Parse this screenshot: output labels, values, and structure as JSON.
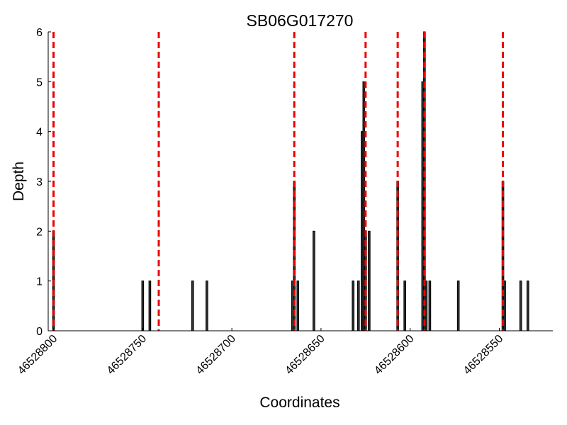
{
  "chart_data": {
    "type": "bar",
    "title": "SB06G017270",
    "xlabel": "Coordinates",
    "ylabel": "Depth",
    "x_axis_reversed": true,
    "xlim": [
      46528803,
      46528520
    ],
    "ylim": [
      0,
      6
    ],
    "x_ticks": [
      46528800,
      46528750,
      46528700,
      46528650,
      46528600,
      46528550
    ],
    "x_tick_labels": [
      "46528800",
      "46528750",
      "46528700",
      "46528650",
      "46528600",
      "46528550"
    ],
    "y_ticks": [
      0,
      1,
      2,
      3,
      4,
      5,
      6
    ],
    "y_tick_labels": [
      "0",
      "1",
      "2",
      "3",
      "4",
      "5",
      "6"
    ],
    "grid": false,
    "bar_color": "#333333",
    "bar_edge_color": "#000000",
    "bars": [
      {
        "x": 46528800,
        "y": 2
      },
      {
        "x": 46528750,
        "y": 1
      },
      {
        "x": 46528746,
        "y": 1
      },
      {
        "x": 46528722,
        "y": 1
      },
      {
        "x": 46528714,
        "y": 1
      },
      {
        "x": 46528666,
        "y": 1
      },
      {
        "x": 46528665,
        "y": 3
      },
      {
        "x": 46528663,
        "y": 1
      },
      {
        "x": 46528654,
        "y": 2
      },
      {
        "x": 46528632,
        "y": 1
      },
      {
        "x": 46528629,
        "y": 1
      },
      {
        "x": 46528627,
        "y": 4
      },
      {
        "x": 46528626,
        "y": 5
      },
      {
        "x": 46528625,
        "y": 2
      },
      {
        "x": 46528623,
        "y": 2
      },
      {
        "x": 46528607,
        "y": 3
      },
      {
        "x": 46528603,
        "y": 1
      },
      {
        "x": 46528593,
        "y": 5
      },
      {
        "x": 46528592,
        "y": 6
      },
      {
        "x": 46528591,
        "y": 1
      },
      {
        "x": 46528589,
        "y": 1
      },
      {
        "x": 46528573,
        "y": 1
      },
      {
        "x": 46528548,
        "y": 3
      },
      {
        "x": 46528547,
        "y": 1
      },
      {
        "x": 46528538,
        "y": 1
      },
      {
        "x": 46528534,
        "y": 1
      }
    ],
    "vlines": {
      "color": "#ee0000",
      "style": "dashed",
      "x": [
        46528800,
        46528741,
        46528665,
        46528625,
        46528607,
        46528592,
        46528548
      ]
    }
  }
}
